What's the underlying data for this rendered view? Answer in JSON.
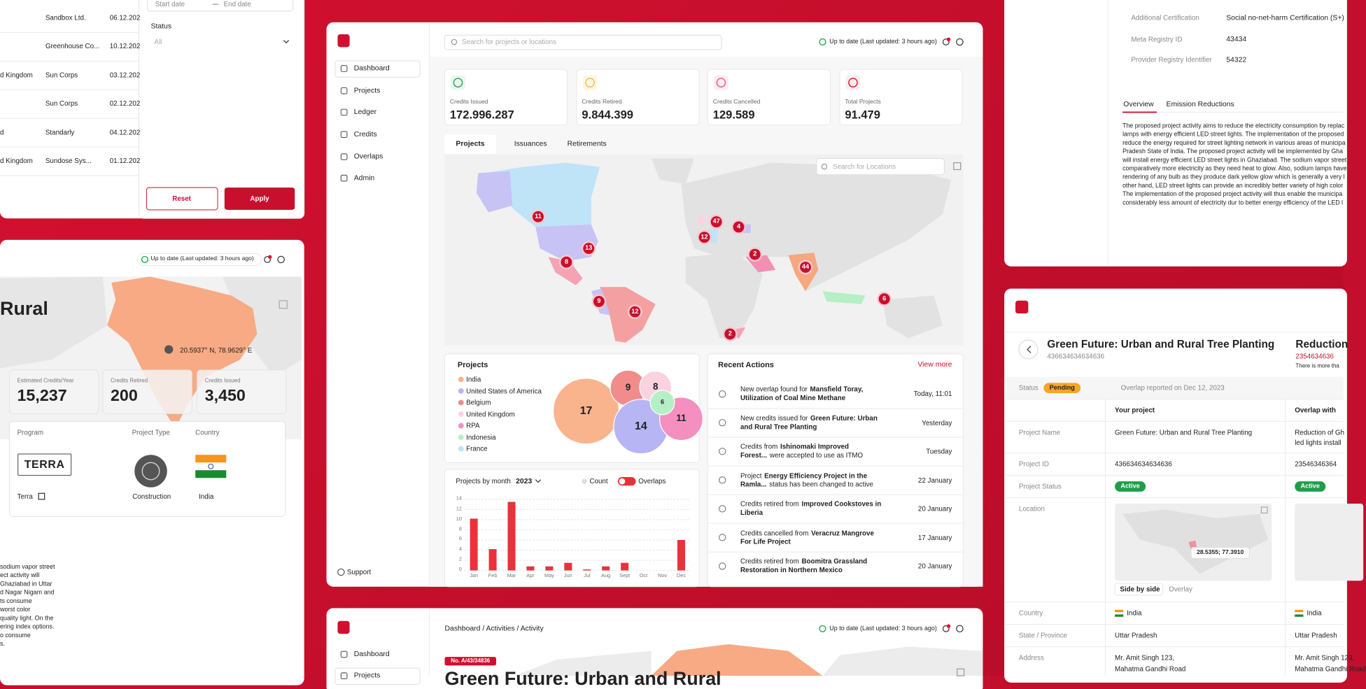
{
  "table_panel": {
    "rows": [
      {
        "company": "Sandbox Ltd.",
        "date": "06.12.202"
      },
      {
        "company": "Greenhouse Co...",
        "date": "10.12.202"
      },
      {
        "country": "d Kingdom",
        "company": "Sun Corps",
        "date": "03.12.202"
      },
      {
        "company": "Sun Corps",
        "date": "02.12.202"
      },
      {
        "country": "d",
        "company": "Standarly",
        "date": "04.12.202"
      },
      {
        "country": "d Kingdom",
        "company": "Sundose Sys...",
        "date": "01.12.202"
      }
    ]
  },
  "filter": {
    "start_date": "Start date",
    "end_date": "End date",
    "status_label": "Status",
    "status_value": "All",
    "reset": "Reset",
    "apply": "Apply"
  },
  "project_panel": {
    "status": "Up to date (Last updated: 3 hours ago)",
    "title": "Rural",
    "coordinates": "20.5937° N, 78.9629° E",
    "stats": [
      {
        "label": "Estimated Credits/Year",
        "value": "15,237"
      },
      {
        "label": "Credits Retired",
        "value": "200"
      },
      {
        "label": "Credits Issued",
        "value": "3,450"
      }
    ],
    "program_label": "Program",
    "project_type_label": "Project Type",
    "country_label": "Country",
    "program_logo": "TERRA",
    "program": "Terra",
    "project_type": "Construction",
    "country": "India",
    "description": [
      "sodium vapor street",
      "ect activity will",
      "Ghaziabad in Uttar",
      "d Nagar Nigam and",
      "ts consume",
      "worst color",
      "quality light. On the",
      "ering index options.",
      "o consume",
      "s."
    ]
  },
  "dashboard": {
    "nav": [
      "Dashboard",
      "Projects",
      "Ledger",
      "Credits",
      "Overlaps",
      "Admin"
    ],
    "support": "Support",
    "search": "Search for projects or locations",
    "status": "Up to date (Last updated: 3 hours ago)",
    "kpis": [
      {
        "label": "Credits Issued",
        "value": "172.996.287"
      },
      {
        "label": "Credits Retired",
        "value": "9.844.399"
      },
      {
        "label": "Credits Cancelled",
        "value": "129.589"
      },
      {
        "label": "Total Projects",
        "value": "91.479"
      }
    ],
    "tabs": [
      "Projects",
      "Issuances",
      "Retirements"
    ],
    "map_search": "Search for Locations",
    "map_clusters": [
      11,
      13,
      8,
      47,
      4,
      12,
      2,
      44,
      9,
      12,
      2,
      6
    ],
    "projects": {
      "title": "Projects",
      "legend": [
        {
          "name": "India",
          "color": "#f9b48e"
        },
        {
          "name": "United States of America",
          "color": "#b8b5f5"
        },
        {
          "name": "Belgium",
          "color": "#f28b8b"
        },
        {
          "name": "United Kingdom",
          "color": "#fbd3e0"
        },
        {
          "name": "RPA",
          "color": "#f58fc0"
        },
        {
          "name": "Indonesia",
          "color": "#b5efc5"
        },
        {
          "name": "France",
          "color": "#bfe3f7"
        }
      ],
      "bubbles": [
        {
          "value": 17,
          "color": "#f9b48e"
        },
        {
          "value": 9,
          "color": "#f28b8b"
        },
        {
          "value": 8,
          "color": "#fbd3e0"
        },
        {
          "value": 14,
          "color": "#b8b5f5"
        },
        {
          "value": 11,
          "color": "#f58fc0"
        },
        {
          "value": 6,
          "color": "#b5efc5"
        }
      ]
    },
    "recent_actions": {
      "title": "Recent Actions",
      "view_more": "View more",
      "items": [
        {
          "pre": "New overlap found for",
          "bold": "Mansfield Toray, Utilization of Coal Mine Methane",
          "time": "Today, 11:01"
        },
        {
          "pre": "New credits issued for",
          "bold": "Green Future: Urban and Rural Tree Planting",
          "time": "Yesterday"
        },
        {
          "pre": "Credits from",
          "bold": "Ishinomaki Improved Forest...",
          "post": "were accepted to use as ITMO",
          "time": "Tuesday"
        },
        {
          "pre": "Project",
          "bold": "Energy Efficiency Project in the Ramla...",
          "post": "status has been changed to active",
          "time": "22 January"
        },
        {
          "pre": "Credits retired from",
          "bold": "Improved Cookstoves in Liberia",
          "time": "20 January"
        },
        {
          "pre": "Credits cancelled from",
          "bold": "Veracruz Mangrove For Life Project",
          "time": "17 January"
        },
        {
          "pre": "Credits retired from",
          "bold": "Boomitra Grassland Restoration in Northern Mexico",
          "time": "20 January"
        }
      ]
    },
    "projects_by_month": {
      "type": "bar",
      "title": "Projects by month",
      "year": "2023",
      "toggles": [
        "Count",
        "Overlaps"
      ],
      "categories": [
        "Jan",
        "Feb",
        "Mar",
        "Apr",
        "May",
        "Jun",
        "Jul",
        "Aug",
        "Sept",
        "Oct",
        "Nov",
        "Dec"
      ],
      "values": [
        10.2,
        4.2,
        13.5,
        0.8,
        0.8,
        1.5,
        0.2,
        0.8,
        1.5,
        0,
        0,
        6
      ],
      "color": "#e8323c",
      "ylim": [
        0,
        14
      ],
      "yticks": [
        0,
        2,
        4,
        6,
        8,
        10,
        12,
        14
      ],
      "grid": true
    }
  },
  "activity_panel": {
    "nav": [
      "Dashboard",
      "Projects"
    ],
    "breadcrumb": "Dashboard / Activities / Activity",
    "status": "Up to date (Last updated: 3 hours ago)",
    "badge": "No. A/43/34836",
    "title": "Green Future: Urban and Rural"
  },
  "details_panel": {
    "fields": [
      {
        "label": "Additional Certification",
        "value": "Social no-net-harm Certification (S+)"
      },
      {
        "label": "Meta Registry ID",
        "value": "43434"
      },
      {
        "label": "Provider Registry Identifier",
        "value": "54322"
      }
    ],
    "tabs": [
      "Overview",
      "Emission Reductions"
    ],
    "description": [
      "The proposed project activity aims to reduce the electricity consumption by replac",
      "lamps with energy efficient LED street lights. The implementation of the proposed",
      "reduce the energy required for street lighting network in various areas of municipa",
      "Pradesh State of India. The proposed project activity will be implemented by Gha",
      "will install energy efficient LED street lights in Ghaziabad. The sodium vapor street",
      "comparatively more electricity as they need heat to glow. Also, sodium lamps have",
      "rendering of any bulb as they produce dark yellow glow which is generally a very l",
      "other hand, LED street lights can provide an incredibly better variety of high color",
      "The implementation of the proposed project activity will thus enable the municipa",
      "considerably less amount of electricity dur to better energy efficiency of the LED l"
    ]
  },
  "overlap_panel": {
    "title": "Green Future: Urban and Rural Tree Planting",
    "project_id": "436634634634636",
    "other_title": "Reduction",
    "other_id": "2354634636",
    "other_note": "There is more tha",
    "status_label": "Status",
    "status": "Pending",
    "reported": "Overlap reported on Dec 12, 2023",
    "col_yours": "Your project",
    "col_theirs": "Overlap with",
    "name_label": "Project Name",
    "name_yours": "Green Future: Urban and Rural Tree Planting",
    "name_theirs": [
      "Reduction of Gh",
      "led lights install"
    ],
    "id_label": "Project ID",
    "id_yours": "436634634634636",
    "id_theirs": "23546346364",
    "status_row_label": "Project Status",
    "status_yours": "Active",
    "status_theirs": "Active",
    "location_label": "Location",
    "coordinates": "28.5355; 77.3910",
    "view_tabs": [
      "Side by side",
      "Overlay"
    ],
    "country_label": "Country",
    "country_yours": "India",
    "country_theirs": "India",
    "state_label": "State / Province",
    "state_yours": "Uttar Pradesh",
    "state_theirs": "Uttar Pradesh",
    "address_label": "Address",
    "address_yours": [
      "Mr. Amit Singh 123,",
      "Mahatma Gandhi Road"
    ],
    "address_theirs": [
      "Mr. Amit Singh 123,",
      "Mahatma Gandhi Road"
    ]
  }
}
